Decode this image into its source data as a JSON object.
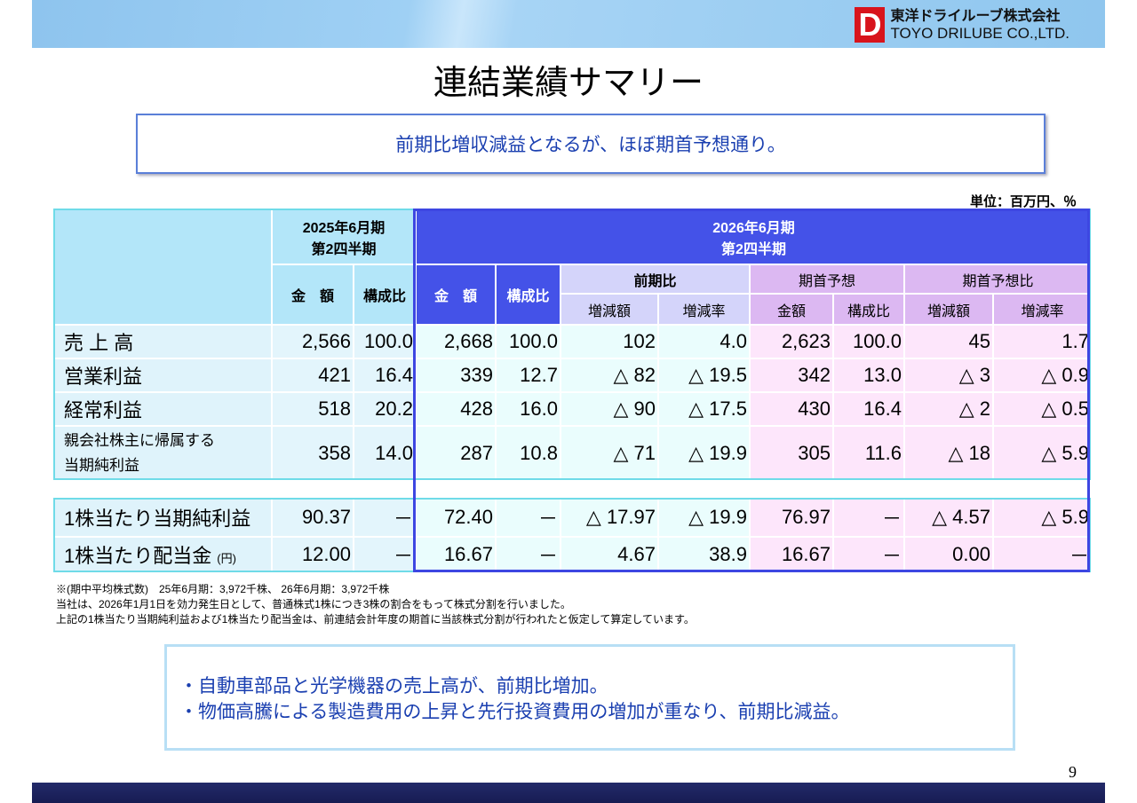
{
  "company": {
    "name_jp": "東洋ドライルーブ株式会社",
    "name_en": "TOYO DRILUBE CO.,LTD.",
    "logo_mark": "D"
  },
  "title": "連結業績サマリー",
  "headline": "前期比増収減益となるが、ほぼ期首予想通り。",
  "unit": "単位：百万円、％",
  "table": {
    "period_prev": [
      "2025年6月期",
      "第2四半期"
    ],
    "period_curr": [
      "2026年6月期",
      "第2四半期"
    ],
    "col_amount": "金　額",
    "col_ratio": "構成比",
    "group_yoy": "前期比",
    "group_forecast": "期首予想",
    "group_vs_forecast": "期首予想比",
    "sub_change": "増減額",
    "sub_rate": "増減率",
    "sub_amount": "金額",
    "sub_ratio": "構成比",
    "rows": [
      {
        "label": "売 上 高",
        "values": [
          "2,566",
          "100.0",
          "2,668",
          "100.0",
          "102",
          "4.0",
          "2,623",
          "100.0",
          "45",
          "1.7"
        ]
      },
      {
        "label": "営業利益",
        "values": [
          "421",
          "16.4",
          "339",
          "12.7",
          "△ 82",
          "△ 19.5",
          "342",
          "13.0",
          "△ 3",
          "△ 0.9"
        ]
      },
      {
        "label": "経常利益",
        "values": [
          "518",
          "20.2",
          "428",
          "16.0",
          "△ 90",
          "△ 17.5",
          "430",
          "16.4",
          "△ 2",
          "△ 0.5"
        ]
      },
      {
        "label": "親会社株主に帰属する",
        "label2": "当期純利益",
        "values": [
          "358",
          "14.0",
          "287",
          "10.8",
          "△ 71",
          "△ 19.9",
          "305",
          "11.6",
          "△ 18",
          "△ 5.9"
        ]
      }
    ],
    "rows2": [
      {
        "label": "1株当たり当期純利益",
        "values": [
          "90.37",
          "－",
          "72.40",
          "－",
          "△ 17.97",
          "△ 19.9",
          "76.97",
          "－",
          "△ 4.57",
          "△ 5.9"
        ]
      },
      {
        "label": "1株当たり配当金",
        "label_suffix": "(円)",
        "values": [
          "12.00",
          "－",
          "16.67",
          "－",
          "4.67",
          "38.9",
          "16.67",
          "－",
          "0.00",
          "－"
        ]
      }
    ]
  },
  "notes": [
    "※(期中平均株式数)　25年6月期：3,972千株、 26年6月期：3,972千株",
    "当社は、2026年1月1日を効力発生日として、普通株式1株につき3株の割合をもって株式分割を行いました。",
    "上記の1株当たり当期純利益および1株当たり配当金は、前連結会計年度の期首に当該株式分割が行われたと仮定して算定しています。"
  ],
  "summary": [
    "・自動車部品と光学機器の売上高が、前期比増加。",
    "・物価高騰による製造費用の上昇と先行投資費用の増加が重なり、前期比減益。"
  ],
  "page_number": "9"
}
